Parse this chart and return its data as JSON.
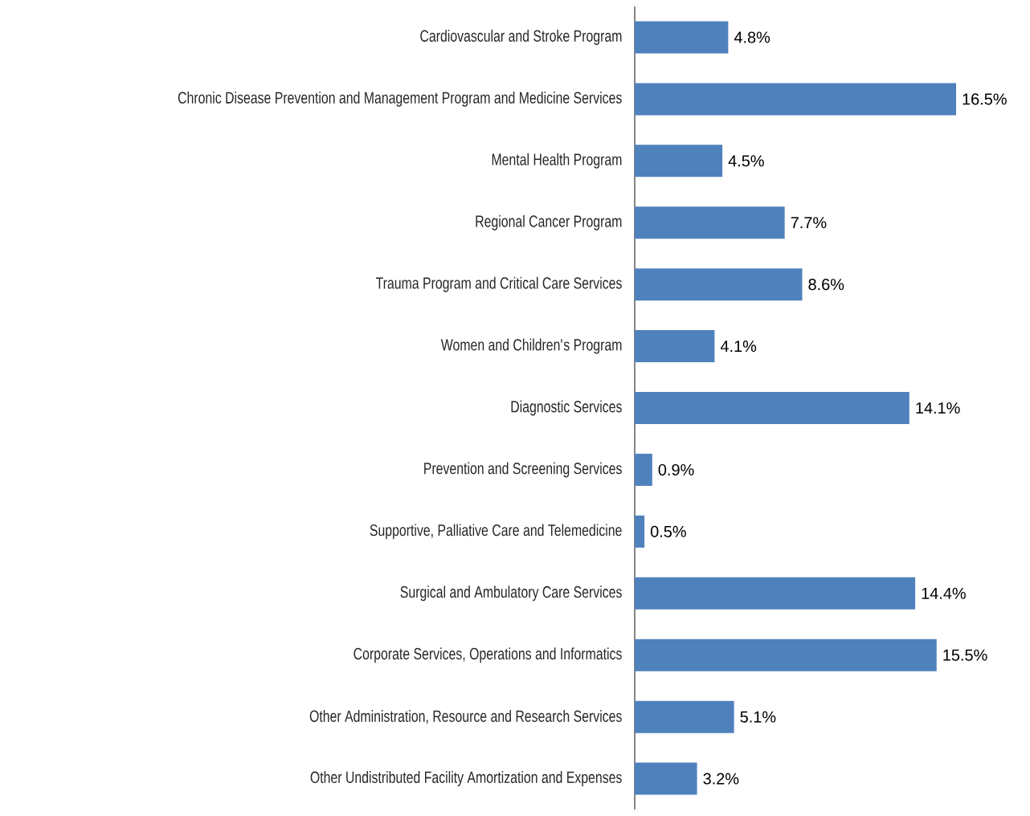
{
  "chart_data": {
    "type": "bar",
    "orientation": "horizontal",
    "categories": [
      "Cardiovascular and Stroke Program",
      "Chronic Disease Prevention and Management Program and Medicine Services",
      "Mental Health Program",
      "Regional Cancer Program",
      "Trauma Program and Critical Care Services",
      "Women and Children's Program",
      "Diagnostic Services",
      "Prevention and Screening Services",
      "Supportive, Palliative Care and Telemedicine",
      "Surgical and Ambulatory Care Services",
      "Corporate Services, Operations and Informatics",
      "Other Administration, Resource and Research Services",
      "Other Undistributed Facility Amortization and Expenses"
    ],
    "values": [
      4.8,
      16.5,
      4.5,
      7.7,
      8.6,
      4.1,
      14.1,
      0.9,
      0.5,
      14.4,
      15.5,
      5.1,
      3.2
    ],
    "value_labels": [
      "4.8%",
      "16.5%",
      "4.5%",
      "7.7%",
      "8.6%",
      "4.1%",
      "14.1%",
      "0.9%",
      "0.5%",
      "14.4%",
      "15.5%",
      "5.1%",
      "3.2%"
    ],
    "color": "#4f81bd"
  }
}
